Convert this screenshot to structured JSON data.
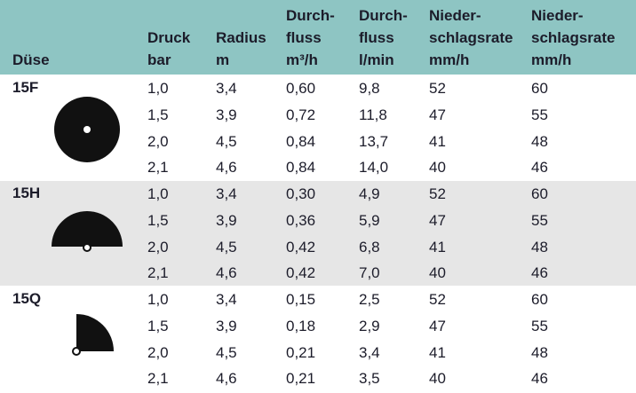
{
  "table": {
    "headers": [
      [
        "Düse"
      ],
      [
        "Druck",
        "bar"
      ],
      [
        "Radius",
        "m"
      ],
      [
        "Durch-",
        "fluss",
        "m³/h"
      ],
      [
        "Durch-",
        "fluss",
        "l/min"
      ],
      [
        "Nieder-",
        "schlagsrate",
        "mm/h"
      ],
      [
        "Nieder-",
        "schlagsrate",
        "mm/h"
      ]
    ],
    "groups": [
      {
        "name": "15F",
        "rows": [
          [
            "1,0",
            "3,4",
            "0,60",
            "9,8",
            "52",
            "60"
          ],
          [
            "1,5",
            "3,9",
            "0,72",
            "11,8",
            "47",
            "55"
          ],
          [
            "2,0",
            "4,5",
            "0,84",
            "13,7",
            "41",
            "48"
          ],
          [
            "2,1",
            "4,6",
            "0,84",
            "14,0",
            "40",
            "46"
          ]
        ]
      },
      {
        "name": "15H",
        "rows": [
          [
            "1,0",
            "3,4",
            "0,30",
            "4,9",
            "52",
            "60"
          ],
          [
            "1,5",
            "3,9",
            "0,36",
            "5,9",
            "47",
            "55"
          ],
          [
            "2,0",
            "4,5",
            "0,42",
            "6,8",
            "41",
            "48"
          ],
          [
            "2,1",
            "4,6",
            "0,42",
            "7,0",
            "40",
            "46"
          ]
        ]
      },
      {
        "name": "15Q",
        "rows": [
          [
            "1,0",
            "3,4",
            "0,15",
            "2,5",
            "52",
            "60"
          ],
          [
            "1,5",
            "3,9",
            "0,18",
            "2,9",
            "47",
            "55"
          ],
          [
            "2,0",
            "4,5",
            "0,21",
            "3,4",
            "41",
            "48"
          ],
          [
            "2,1",
            "4,6",
            "0,21",
            "3,5",
            "40",
            "46"
          ]
        ]
      }
    ]
  }
}
